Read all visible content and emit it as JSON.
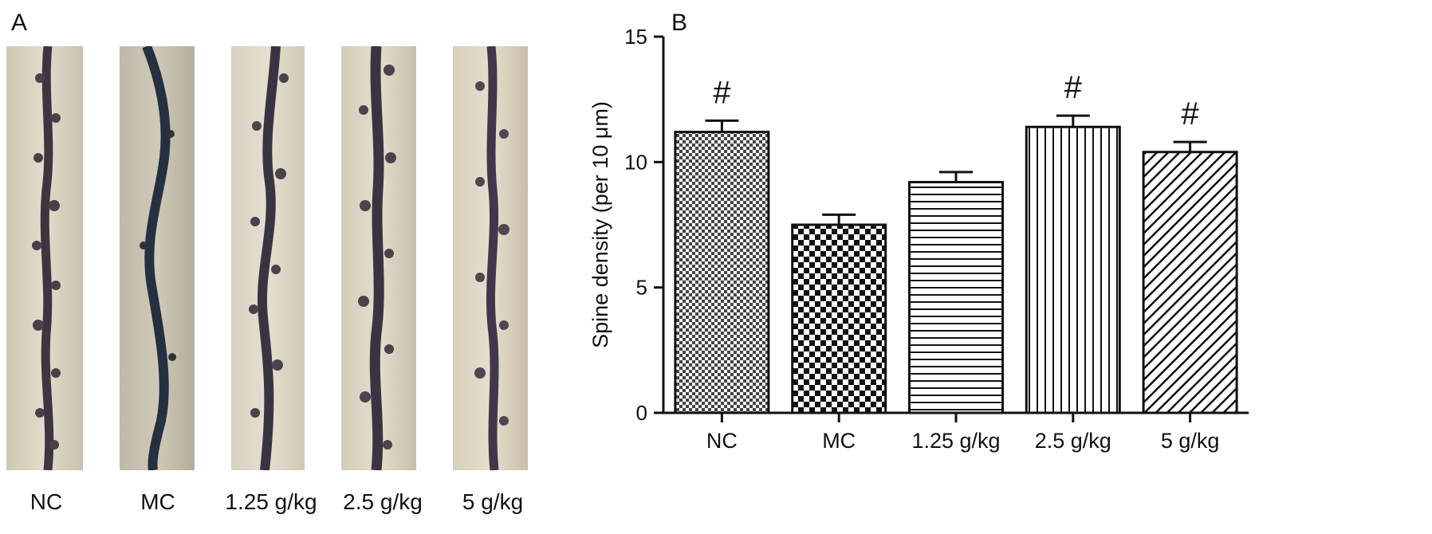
{
  "panel_a": {
    "letter": "A",
    "micrographs": [
      {
        "label": "NC",
        "stain": "dendrite-micrograph-nc"
      },
      {
        "label": "MC",
        "stain": "dendrite-micrograph-mc"
      },
      {
        "label": "1.25 g/kg",
        "stain": "dendrite-micrograph-1.25"
      },
      {
        "label": "2.5 g/kg",
        "stain": "dendrite-micrograph-2.5"
      },
      {
        "label": "5 g/kg",
        "stain": "dendrite-micrograph-5"
      }
    ]
  },
  "panel_b": {
    "letter": "B"
  },
  "chart_data": {
    "type": "bar",
    "categories": [
      "NC",
      "MC",
      "1.25 g/kg",
      "2.5 g/kg",
      "5 g/kg"
    ],
    "values": [
      11.2,
      7.5,
      9.2,
      11.4,
      10.4
    ],
    "errors": [
      0.45,
      0.4,
      0.4,
      0.45,
      0.4
    ],
    "annotations": [
      "#",
      "",
      "",
      "#",
      "#"
    ],
    "patterns": [
      "fine-checker",
      "bold-checker",
      "horizontal-lines",
      "vertical-lines",
      "diagonal-lines"
    ],
    "ylabel": "Spine density (per 10 μm)",
    "xlabel": "",
    "ylim": [
      0,
      15
    ],
    "yticks": [
      0,
      5,
      10,
      15
    ],
    "grid": false
  }
}
